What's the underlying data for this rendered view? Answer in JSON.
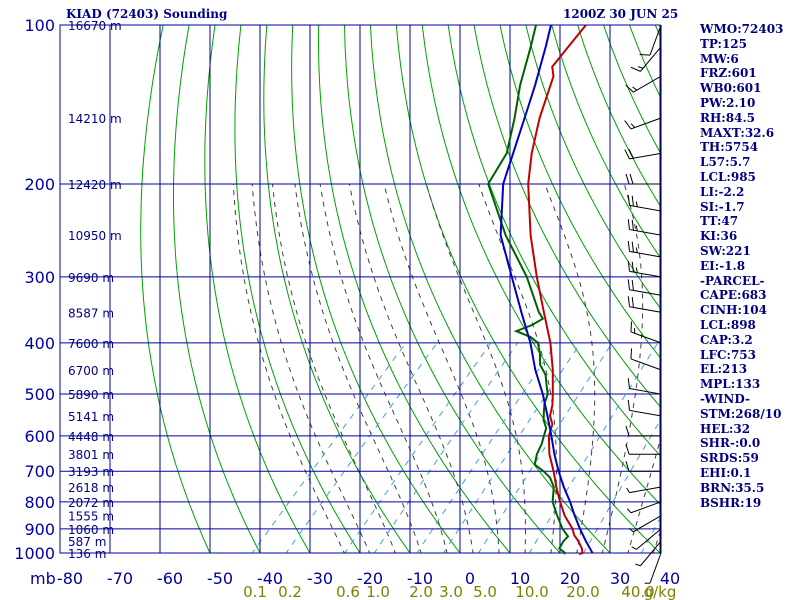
{
  "header": {
    "station": "KIAD (72403) Sounding",
    "time": "1200Z 30 JUN 25"
  },
  "indices": [
    "WMO:72403",
    "TP:125",
    "MW:6",
    "FRZ:601",
    "WB0:601",
    "PW:2.10",
    "RH:84.5",
    "MAXT:32.6",
    "TH:5754",
    "L57:5.7",
    "LCL:985",
    "LI:-2.2",
    "SI:-1.7",
    "TT:47",
    "KI:36",
    "SW:221",
    "EI:-1.8",
    "-PARCEL-",
    "CAPE:683",
    "CINH:104",
    "LCL:898",
    "CAP:3.2",
    "LFC:753",
    "EL:213",
    "MPL:133",
    "-WIND-",
    "STM:268/10",
    "HEL:32",
    "SHR-:0.0",
    "SRDS:59",
    "EHI:0.1",
    "BRN:35.5",
    "BSHR:19"
  ],
  "colors": {
    "axes": "#0000a0",
    "temperature": "#c00000",
    "dewpoint": "#006000",
    "parcel": "#0000c0",
    "dry_adiabat": "#00a000",
    "moist_adiabat": "#404040",
    "mixing_ratio": "#40a0e0",
    "label": "#000080",
    "mr_label": "#808000"
  },
  "chart_data": {
    "type": "line",
    "title": "KIAD (72403) Sounding",
    "pressure_unit_label": "mb",
    "xlim": [
      -80,
      40
    ],
    "ylim": [
      1000,
      100
    ],
    "pressure_ticks": [
      100,
      200,
      300,
      400,
      500,
      600,
      700,
      800,
      900,
      1000
    ],
    "temperature_ticks": [
      -80,
      -70,
      -60,
      -50,
      -40,
      -30,
      -20,
      -10,
      0,
      10,
      20,
      30,
      40
    ],
    "mixing_ratio_labels": [
      "0.1",
      "0.2",
      "0.6",
      "1.0",
      "2.0",
      "3.0",
      "5.0",
      "10.0",
      "20.0",
      "40.0"
    ],
    "mixing_ratio_unit": "g/kg",
    "heights": [
      {
        "p": 100,
        "label": "16670 m"
      },
      {
        "p": 150,
        "label": "14210 m"
      },
      {
        "p": 200,
        "label": "12420 m"
      },
      {
        "p": 250,
        "label": "10950 m"
      },
      {
        "p": 300,
        "label": "9690 m"
      },
      {
        "p": 350,
        "label": "8587 m"
      },
      {
        "p": 400,
        "label": "7600 m"
      },
      {
        "p": 450,
        "label": "6700 m"
      },
      {
        "p": 500,
        "label": "5890 m"
      },
      {
        "p": 550,
        "label": "5141 m"
      },
      {
        "p": 600,
        "label": "4448 m"
      },
      {
        "p": 650,
        "label": "3801 m"
      },
      {
        "p": 700,
        "label": "3193 m"
      },
      {
        "p": 750,
        "label": "2618 m"
      },
      {
        "p": 800,
        "label": "2072 m"
      },
      {
        "p": 850,
        "label": "1555 m"
      },
      {
        "p": 900,
        "label": "1060 m"
      },
      {
        "p": 950,
        "label": "587 m"
      },
      {
        "p": 1000,
        "label": "136 m"
      }
    ],
    "series": [
      {
        "name": "Temperature",
        "points": [
          [
            1005,
            24.0
          ],
          [
            1000,
            24.5
          ],
          [
            980,
            23.5
          ],
          [
            950,
            21.5
          ],
          [
            925,
            19.5
          ],
          [
            900,
            18.0
          ],
          [
            850,
            14.0
          ],
          [
            800,
            10.5
          ],
          [
            750,
            7.0
          ],
          [
            700,
            3.5
          ],
          [
            650,
            -0.5
          ],
          [
            600,
            -4.0
          ],
          [
            570,
            -5.5
          ],
          [
            550,
            -7.5
          ],
          [
            525,
            -9.0
          ],
          [
            500,
            -11.0
          ],
          [
            450,
            -15.5
          ],
          [
            400,
            -21.0
          ],
          [
            350,
            -28.0
          ],
          [
            300,
            -36.0
          ],
          [
            250,
            -45.0
          ],
          [
            200,
            -55.0
          ],
          [
            175,
            -60.0
          ],
          [
            150,
            -65.0
          ],
          [
            125,
            -70.0
          ],
          [
            120,
            -72.0
          ],
          [
            110,
            -72.5
          ],
          [
            100,
            -73.0
          ]
        ]
      },
      {
        "name": "Dewpoint",
        "points": [
          [
            1005,
            21.0
          ],
          [
            1000,
            21.0
          ],
          [
            980,
            19.0
          ],
          [
            950,
            18.5
          ],
          [
            930,
            18.5
          ],
          [
            900,
            16.0
          ],
          [
            850,
            12.5
          ],
          [
            800,
            9.0
          ],
          [
            750,
            6.5
          ],
          [
            720,
            4.0
          ],
          [
            700,
            1.5
          ],
          [
            680,
            -1.5
          ],
          [
            650,
            -3.0
          ],
          [
            620,
            -4.0
          ],
          [
            600,
            -5.0
          ],
          [
            580,
            -6.0
          ],
          [
            560,
            -8.0
          ],
          [
            540,
            -9.5
          ],
          [
            520,
            -11.0
          ],
          [
            500,
            -12.0
          ],
          [
            480,
            -14.0
          ],
          [
            460,
            -16.0
          ],
          [
            440,
            -19.0
          ],
          [
            420,
            -21.0
          ],
          [
            400,
            -23.5
          ],
          [
            390,
            -26.0
          ],
          [
            380,
            -30.0
          ],
          [
            370,
            -28.0
          ],
          [
            360,
            -27.0
          ],
          [
            350,
            -29.0
          ],
          [
            300,
            -38.0
          ],
          [
            250,
            -50.0
          ],
          [
            200,
            -63.0
          ],
          [
            175,
            -65.0
          ],
          [
            150,
            -70.0
          ],
          [
            130,
            -75.0
          ],
          [
            110,
            -80.0
          ],
          [
            100,
            -83.0
          ]
        ]
      },
      {
        "name": "Parcel",
        "points": [
          [
            1000,
            26.5
          ],
          [
            950,
            23.0
          ],
          [
            900,
            19.5
          ],
          [
            850,
            16.0
          ],
          [
            800,
            12.5
          ],
          [
            750,
            8.5
          ],
          [
            700,
            4.5
          ],
          [
            650,
            0.5
          ],
          [
            600,
            -3.5
          ],
          [
            550,
            -8.0
          ],
          [
            500,
            -13.0
          ],
          [
            450,
            -19.0
          ],
          [
            400,
            -25.0
          ],
          [
            350,
            -32.5
          ],
          [
            300,
            -41.0
          ],
          [
            250,
            -51.0
          ],
          [
            200,
            -60.0
          ],
          [
            150,
            -68.0
          ],
          [
            130,
            -72.0
          ],
          [
            110,
            -77.0
          ],
          [
            100,
            -80.0
          ]
        ]
      }
    ],
    "wind_barbs": [
      {
        "p": 100,
        "dir": 200,
        "spd": 10
      },
      {
        "p": 110,
        "dir": 220,
        "spd": 15
      },
      {
        "p": 125,
        "dir": 240,
        "spd": 15
      },
      {
        "p": 150,
        "dir": 250,
        "spd": 15
      },
      {
        "p": 175,
        "dir": 260,
        "spd": 20
      },
      {
        "p": 200,
        "dir": 270,
        "spd": 20
      },
      {
        "p": 225,
        "dir": 280,
        "spd": 25
      },
      {
        "p": 250,
        "dir": 280,
        "spd": 25
      },
      {
        "p": 275,
        "dir": 280,
        "spd": 25
      },
      {
        "p": 300,
        "dir": 280,
        "spd": 25
      },
      {
        "p": 325,
        "dir": 280,
        "spd": 20
      },
      {
        "p": 350,
        "dir": 280,
        "spd": 20
      },
      {
        "p": 400,
        "dir": 290,
        "spd": 15
      },
      {
        "p": 450,
        "dir": 290,
        "spd": 10
      },
      {
        "p": 500,
        "dir": 280,
        "spd": 10
      },
      {
        "p": 550,
        "dir": 280,
        "spd": 10
      },
      {
        "p": 600,
        "dir": 270,
        "spd": 10
      },
      {
        "p": 650,
        "dir": 270,
        "spd": 10
      },
      {
        "p": 700,
        "dir": 270,
        "spd": 10
      },
      {
        "p": 750,
        "dir": 260,
        "spd": 5
      },
      {
        "p": 800,
        "dir": 250,
        "spd": 5
      },
      {
        "p": 850,
        "dir": 240,
        "spd": 5
      },
      {
        "p": 900,
        "dir": 230,
        "spd": 5
      },
      {
        "p": 950,
        "dir": 220,
        "spd": 5
      },
      {
        "p": 1000,
        "dir": 200,
        "spd": 5
      }
    ]
  }
}
